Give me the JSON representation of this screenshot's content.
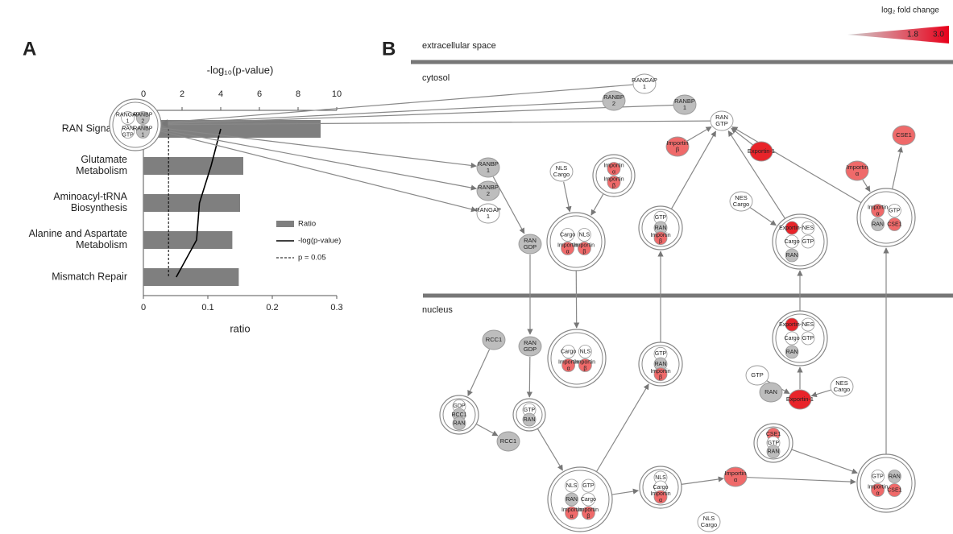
{
  "figure": {
    "panel_a": "A",
    "panel_b": "B"
  },
  "chart_data": {
    "type": "bar",
    "orientation": "horizontal",
    "categories": [
      "RAN Signaling",
      "Glutamate\nMetabolism",
      "Aminoacyl-tRNA\nBiosynthesis",
      "Alanine and Aspartate\nMetabolism",
      "Mismatch Repair"
    ],
    "series": [
      {
        "name": "Ratio",
        "color": "#7f7f7f",
        "values": [
          0.275,
          0.155,
          0.15,
          0.138,
          0.148
        ]
      },
      {
        "name": "-log(p-value)",
        "color": "#000000",
        "axis": "x2",
        "type": "line",
        "values": [
          4.0,
          3.5,
          2.9,
          2.75,
          1.7
        ]
      }
    ],
    "threshold": {
      "name": "p = 0.05",
      "value": 1.3,
      "axis": "x2",
      "color": "#000000"
    },
    "xlabel": "ratio",
    "xlim": [
      0,
      0.3
    ],
    "xticks": [
      0,
      0.1,
      0.2,
      0.3
    ],
    "x2label": "-log₁₀(p-value)",
    "x2lim": [
      0,
      10
    ],
    "x2ticks": [
      0,
      2,
      4,
      6,
      8,
      10
    ],
    "legend": "right",
    "grid": false
  },
  "diagram": {
    "legend": {
      "title": "log₂ fold change",
      "low": "1.8",
      "high": "3.0",
      "colors": [
        "#d0d0d0",
        "#e8001a"
      ]
    },
    "compartments": [
      "extracellular space",
      "cytosol",
      "nucleus"
    ],
    "nodes": [
      {
        "members": [
          {
            "label": "RANGAP\n1",
            "color": "#ffffff"
          },
          {
            "label": "RANBP\n2",
            "color": "#bdbdbd"
          },
          {
            "label": "RAN\nGTP",
            "color": "#ffffff"
          },
          {
            "label": "RANBP\n1",
            "color": "#bdbdbd"
          }
        ]
      },
      {
        "members": [
          {
            "label": "RANGAP\n1",
            "color": "#ffffff"
          }
        ]
      },
      {
        "members": [
          {
            "label": "RANBP\n2",
            "color": "#bdbdbd"
          }
        ]
      },
      {
        "members": [
          {
            "label": "RANBP\n1",
            "color": "#bdbdbd"
          }
        ]
      },
      {
        "members": [
          {
            "label": "RAN\nGTP",
            "color": "#ffffff"
          }
        ]
      },
      {
        "members": [
          {
            "label": "Importin\nβ",
            "color": "#ef6a6a"
          }
        ]
      },
      {
        "members": [
          {
            "label": "Exportin-1",
            "color": "#e8242a"
          }
        ]
      },
      {
        "members": [
          {
            "label": "CSE1",
            "color": "#ef6a6a"
          }
        ]
      },
      {
        "members": [
          {
            "label": "RANBP\n1",
            "color": "#bdbdbd"
          }
        ]
      },
      {
        "members": [
          {
            "label": "RANBP\n2",
            "color": "#bdbdbd"
          }
        ]
      },
      {
        "members": [
          {
            "label": "RANGAP\n1",
            "color": "#ffffff"
          }
        ]
      },
      {
        "members": [
          {
            "label": "NLS\nCargo",
            "color": "#ffffff"
          }
        ]
      },
      {
        "members": [
          {
            "label": "Importin\nα",
            "color": "#ef6a6a"
          },
          {
            "label": "Importin\nβ",
            "color": "#ef6a6a"
          }
        ]
      },
      {
        "members": [
          {
            "label": "Importin\nα",
            "color": "#ef6a6a"
          }
        ]
      },
      {
        "members": [
          {
            "label": "NES\nCargo",
            "color": "#ffffff"
          }
        ]
      },
      {
        "members": [
          {
            "label": "RAN\nGDP",
            "color": "#bdbdbd"
          }
        ]
      },
      {
        "members": [
          {
            "label": "Cargo",
            "color": "#ffffff"
          },
          {
            "label": "NLS",
            "color": "#ffffff"
          },
          {
            "label": "Importin\nα",
            "color": "#ef6a6a"
          },
          {
            "label": "Importin\nβ",
            "color": "#ef6a6a"
          }
        ]
      },
      {
        "members": [
          {
            "label": "GTP",
            "color": "#ffffff"
          },
          {
            "label": "RAN",
            "color": "#bdbdbd"
          },
          {
            "label": "Importin\nβ",
            "color": "#ef6a6a"
          }
        ]
      },
      {
        "members": [
          {
            "label": "Exportin-1",
            "color": "#e8242a"
          },
          {
            "label": "NES",
            "color": "#ffffff"
          },
          {
            "label": "Cargo",
            "color": "#ffffff"
          },
          {
            "label": "GTP",
            "color": "#ffffff"
          },
          {
            "label": "RAN",
            "color": "#bdbdbd"
          }
        ]
      },
      {
        "members": [
          {
            "label": "Importin\nα",
            "color": "#ef6a6a"
          },
          {
            "label": "GTP",
            "color": "#ffffff"
          },
          {
            "label": "RAN",
            "color": "#bdbdbd"
          },
          {
            "label": "CSE1",
            "color": "#ef6a6a"
          }
        ]
      },
      {
        "members": [
          {
            "label": "RAN\nGDP",
            "color": "#bdbdbd"
          }
        ]
      },
      {
        "members": [
          {
            "label": "RCC1",
            "color": "#bdbdbd"
          }
        ]
      },
      {
        "members": [
          {
            "label": "Cargo",
            "color": "#ffffff"
          },
          {
            "label": "NLS",
            "color": "#ffffff"
          },
          {
            "label": "Importin\nα",
            "color": "#ef6a6a"
          },
          {
            "label": "Importin\nβ",
            "color": "#ef6a6a"
          }
        ]
      },
      {
        "members": [
          {
            "label": "GTP",
            "color": "#ffffff"
          },
          {
            "label": "RAN",
            "color": "#bdbdbd"
          },
          {
            "label": "Importin\nβ",
            "color": "#ef6a6a"
          }
        ]
      },
      {
        "members": [
          {
            "label": "Exportin-1",
            "color": "#e8242a"
          },
          {
            "label": "NES",
            "color": "#ffffff"
          },
          {
            "label": "Cargo",
            "color": "#ffffff"
          },
          {
            "label": "GTP",
            "color": "#ffffff"
          },
          {
            "label": "RAN",
            "color": "#bdbdbd"
          }
        ]
      },
      {
        "members": [
          {
            "label": "GTP",
            "color": "#ffffff"
          }
        ]
      },
      {
        "members": [
          {
            "label": "RAN",
            "color": "#bdbdbd"
          }
        ]
      },
      {
        "members": [
          {
            "label": "Exportin-1",
            "color": "#e8242a"
          }
        ]
      },
      {
        "members": [
          {
            "label": "NES\nCargo",
            "color": "#ffffff"
          }
        ]
      },
      {
        "members": [
          {
            "label": "GDP",
            "color": "#ffffff"
          },
          {
            "label": "RCC1",
            "color": "#bdbdbd"
          },
          {
            "label": "RAN",
            "color": "#bdbdbd"
          }
        ]
      },
      {
        "members": [
          {
            "label": "GTP",
            "color": "#ffffff"
          },
          {
            "label": "RAN",
            "color": "#bdbdbd"
          }
        ]
      },
      {
        "members": [
          {
            "label": "RCC1",
            "color": "#bdbdbd"
          }
        ]
      },
      {
        "members": [
          {
            "label": "CSE1",
            "color": "#ef6a6a"
          },
          {
            "label": "GTP",
            "color": "#ffffff"
          },
          {
            "label": "RAN",
            "color": "#bdbdbd"
          }
        ]
      },
      {
        "members": [
          {
            "label": "NLS",
            "color": "#ffffff"
          },
          {
            "label": "GTP",
            "color": "#ffffff"
          },
          {
            "label": "RAN",
            "color": "#bdbdbd"
          },
          {
            "label": "Cargo",
            "color": "#ffffff"
          },
          {
            "label": "Importin\nα",
            "color": "#ef6a6a"
          },
          {
            "label": "Importin\nβ",
            "color": "#ef6a6a"
          }
        ]
      },
      {
        "members": [
          {
            "label": "NLS",
            "color": "#ffffff"
          },
          {
            "label": "Cargo",
            "color": "#ffffff"
          },
          {
            "label": "Importin\nα",
            "color": "#ef6a6a"
          }
        ]
      },
      {
        "members": [
          {
            "label": "Importin\nα",
            "color": "#ef6a6a"
          }
        ]
      },
      {
        "members": [
          {
            "label": "NLS\nCargo",
            "color": "#ffffff"
          }
        ]
      },
      {
        "members": [
          {
            "label": "GTP",
            "color": "#ffffff"
          },
          {
            "label": "RAN",
            "color": "#bdbdbd"
          },
          {
            "label": "Importin\nα",
            "color": "#ef6a6a"
          },
          {
            "label": "CSE1",
            "color": "#ef6a6a"
          }
        ]
      }
    ]
  }
}
